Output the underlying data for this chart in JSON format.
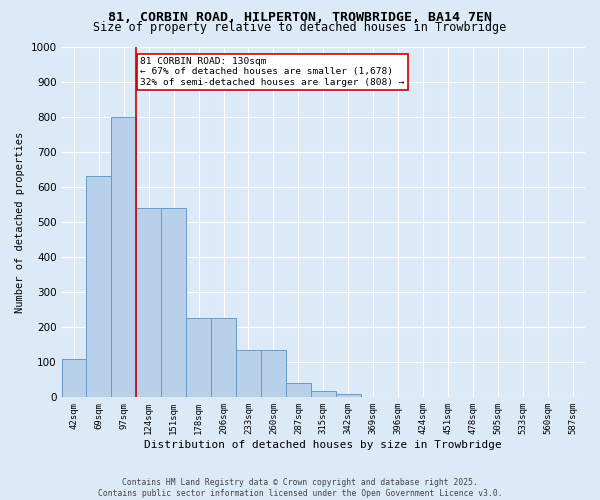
{
  "title": "81, CORBIN ROAD, HILPERTON, TROWBRIDGE, BA14 7EN",
  "subtitle": "Size of property relative to detached houses in Trowbridge",
  "xlabel": "Distribution of detached houses by size in Trowbridge",
  "ylabel": "Number of detached properties",
  "bar_labels": [
    "42sqm",
    "69sqm",
    "97sqm",
    "124sqm",
    "151sqm",
    "178sqm",
    "206sqm",
    "233sqm",
    "260sqm",
    "287sqm",
    "315sqm",
    "342sqm",
    "369sqm",
    "396sqm",
    "424sqm",
    "451sqm",
    "478sqm",
    "505sqm",
    "533sqm",
    "560sqm",
    "587sqm"
  ],
  "bar_values": [
    110,
    630,
    800,
    540,
    540,
    225,
    225,
    135,
    135,
    42,
    18,
    10,
    0,
    0,
    0,
    0,
    0,
    0,
    0,
    0,
    0
  ],
  "bar_color": "#b8d0ea",
  "bar_edge_color": "#6699cc",
  "bg_color": "#dce9f7",
  "grid_color": "#ffffff",
  "red_line_x": 2.5,
  "annotation_text": "81 CORBIN ROAD: 130sqm\n← 67% of detached houses are smaller (1,678)\n32% of semi-detached houses are larger (808) →",
  "annotation_box_facecolor": "#ffffff",
  "annotation_border_color": "#cc0000",
  "ylim": [
    0,
    1000
  ],
  "yticks": [
    0,
    100,
    200,
    300,
    400,
    500,
    600,
    700,
    800,
    900,
    1000
  ],
  "footer_line1": "Contains HM Land Registry data © Crown copyright and database right 2025.",
  "footer_line2": "Contains public sector information licensed under the Open Government Licence v3.0.",
  "title_fontsize": 9.5,
  "subtitle_fontsize": 8.5,
  "ylabel_fontsize": 7.5,
  "xlabel_fontsize": 8,
  "ytick_fontsize": 7.5,
  "xtick_fontsize": 6.5,
  "annotation_fontsize": 6.8,
  "footer_fontsize": 5.8
}
